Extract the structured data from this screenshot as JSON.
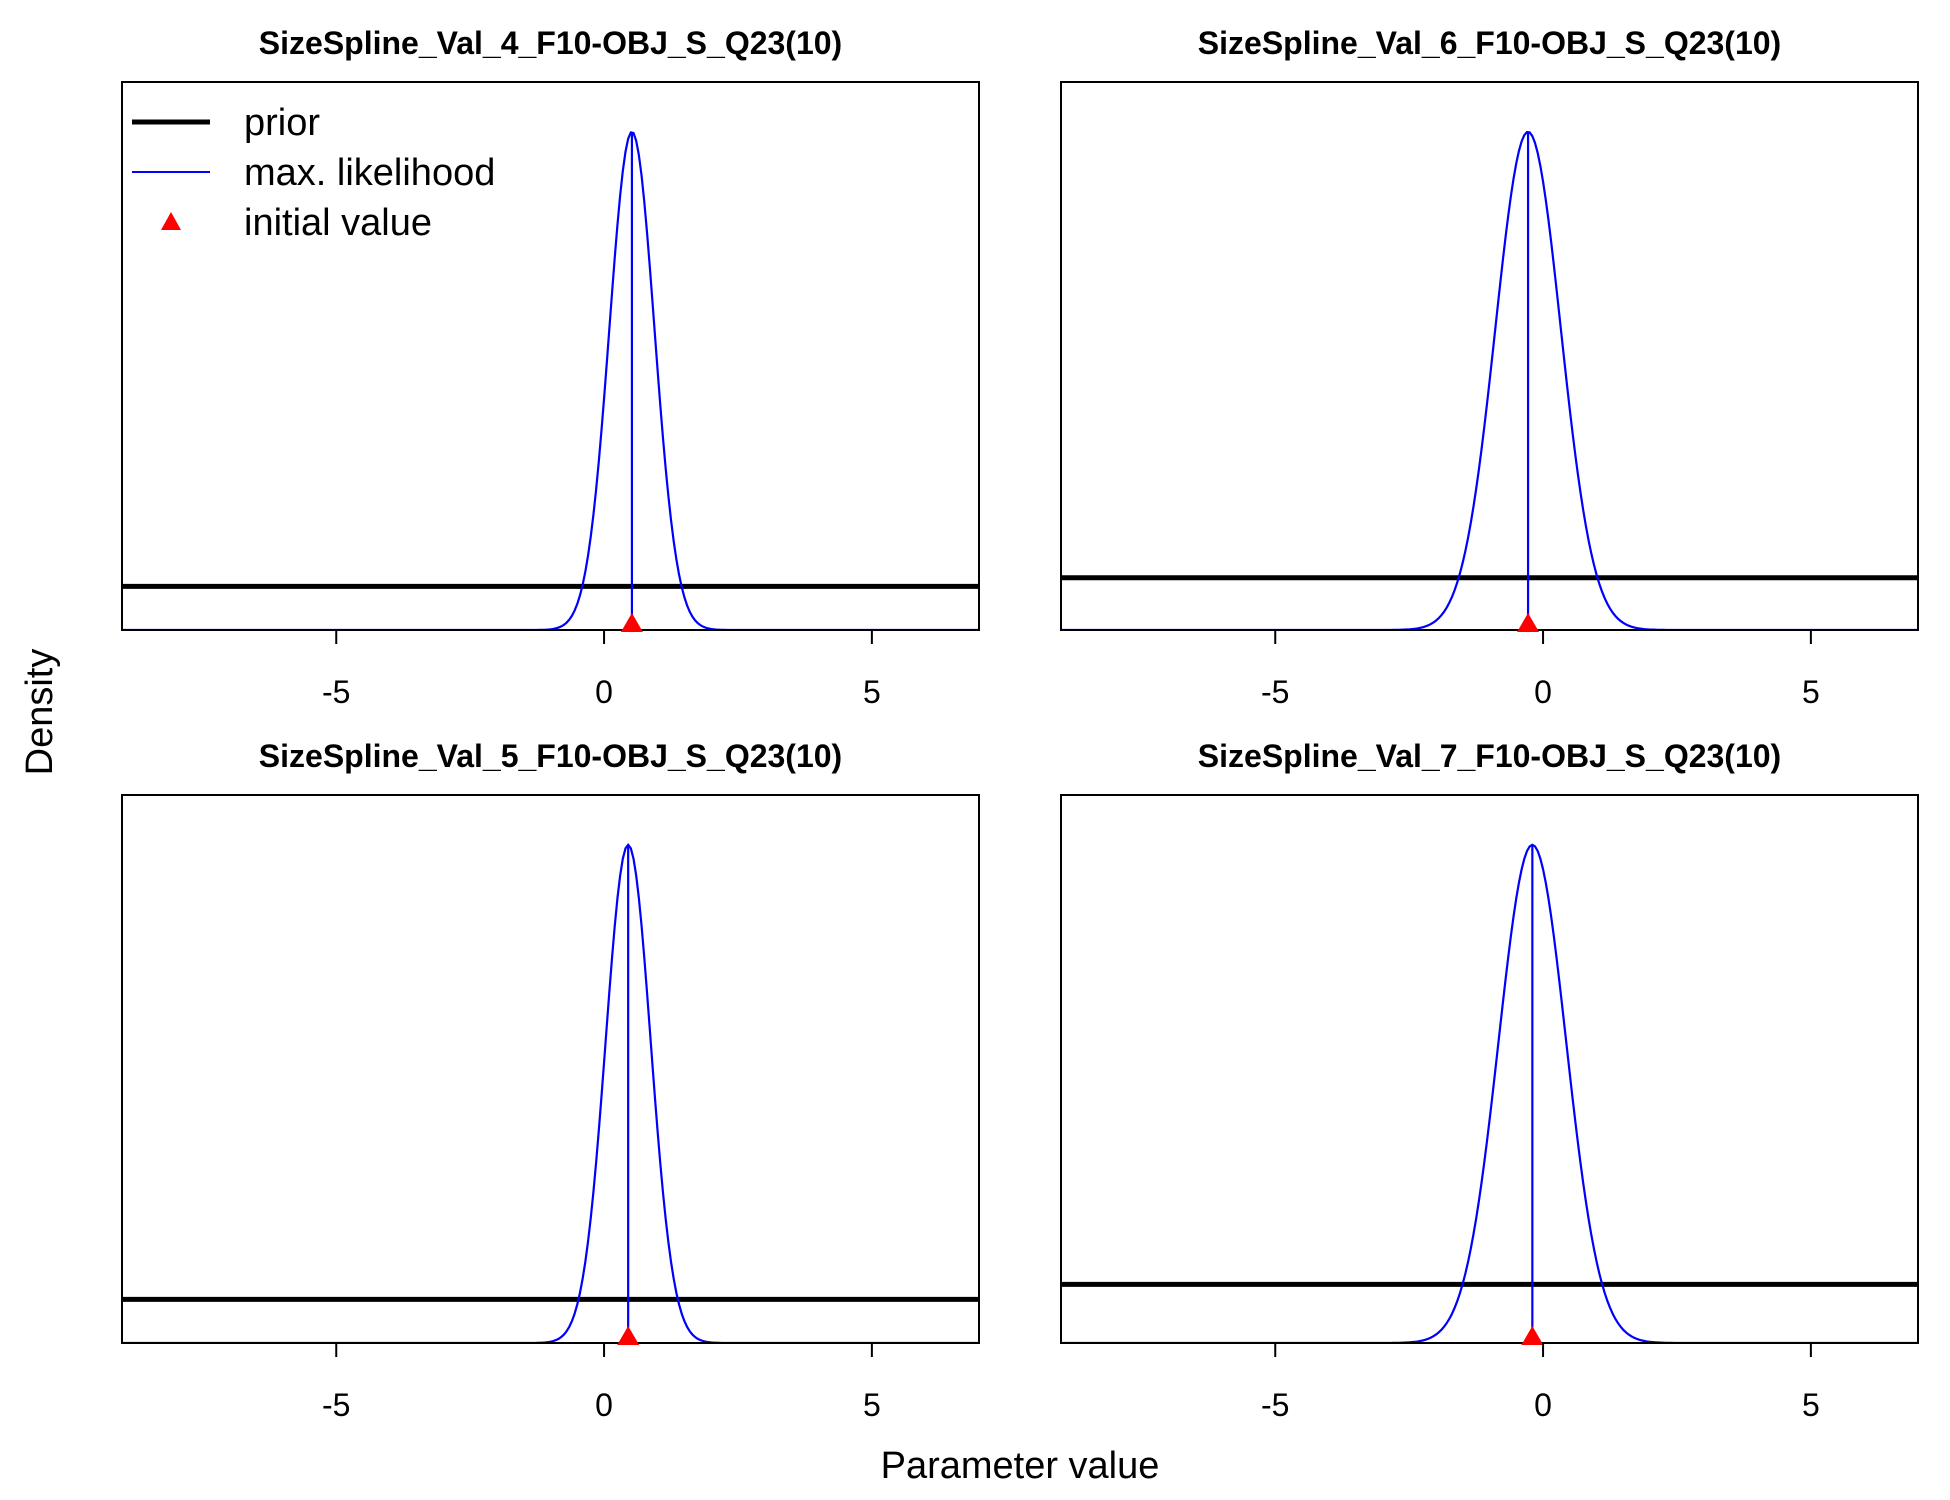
{
  "figure": {
    "ylabel": "Density",
    "xlabel": "Parameter value"
  },
  "colors": {
    "prior": "#000000",
    "max_likelihood": "#0000ff",
    "initial_value": "#ff0000"
  },
  "legend": {
    "placement": "top-left",
    "items": [
      {
        "label": "prior",
        "symbol": "line-thick",
        "color": "#000000"
      },
      {
        "label": "max. likelihood",
        "symbol": "line-thin",
        "color": "#0000ff"
      },
      {
        "label": "initial value",
        "symbol": "triangle",
        "color": "#ff0000"
      }
    ]
  },
  "chart_data": [
    {
      "type": "line",
      "title": "SizeSpline_Val_4_F10-OBJ_S_Q23(10)",
      "xlim": [
        -9,
        7
      ],
      "ylim": [
        0,
        1.1
      ],
      "xticks": [
        -5,
        0,
        5
      ],
      "prior_density": 0.0876,
      "ml_mean": 0.52,
      "ml_sd": 0.42,
      "initial_value": 0.52
    },
    {
      "type": "line",
      "title": "SizeSpline_Val_6_F10-OBJ_S_Q23(10)",
      "xlim": [
        -9,
        7
      ],
      "ylim": [
        0,
        1.1
      ],
      "xticks": [
        -5,
        0,
        5
      ],
      "prior_density": 0.1049,
      "ml_mean": -0.28,
      "ml_sd": 0.61,
      "initial_value": -0.28
    },
    {
      "type": "line",
      "title": "SizeSpline_Val_5_F10-OBJ_S_Q23(10)",
      "xlim": [
        -9,
        7
      ],
      "ylim": [
        0,
        1.1
      ],
      "xticks": [
        -5,
        0,
        5
      ],
      "prior_density": 0.0876,
      "ml_mean": 0.45,
      "ml_sd": 0.42,
      "initial_value": 0.45
    },
    {
      "type": "line",
      "title": "SizeSpline_Val_7_F10-OBJ_S_Q23(10)",
      "xlim": [
        -9,
        7
      ],
      "ylim": [
        0,
        1.1
      ],
      "xticks": [
        -5,
        0,
        5
      ],
      "prior_density": 0.1176,
      "ml_mean": -0.2,
      "ml_sd": 0.63,
      "initial_value": -0.2
    }
  ]
}
